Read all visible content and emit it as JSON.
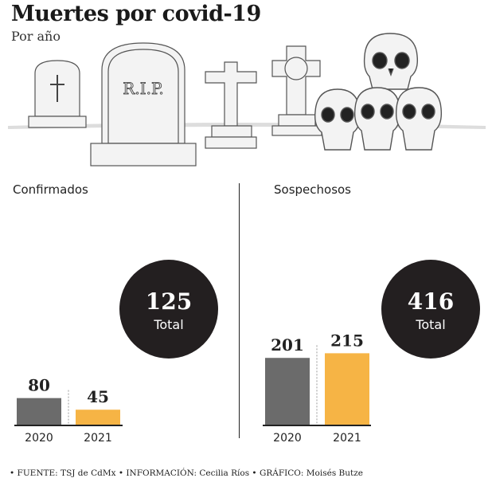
{
  "title": "Muertes por covid-19",
  "subtitle": "Por año",
  "tombstone_text": "R.I.P.",
  "colors": {
    "gray": "#6b6b6b",
    "orange": "#f6b445",
    "circle": "#231f20"
  },
  "chart_data": [
    {
      "type": "bar",
      "title": "Confirmados",
      "categories": [
        "2020",
        "2021"
      ],
      "values": [
        80,
        45
      ],
      "total": 125,
      "total_label": "Total"
    },
    {
      "type": "bar",
      "title": "Sospechosos",
      "categories": [
        "2020",
        "2021"
      ],
      "values": [
        201,
        215
      ],
      "total": 416,
      "total_label": "Total"
    }
  ],
  "source": "• FUENTE: TSJ de CdMx • INFORMACIÓN: Cecilia Ríos • GRÁFICO: Moisés Butze"
}
